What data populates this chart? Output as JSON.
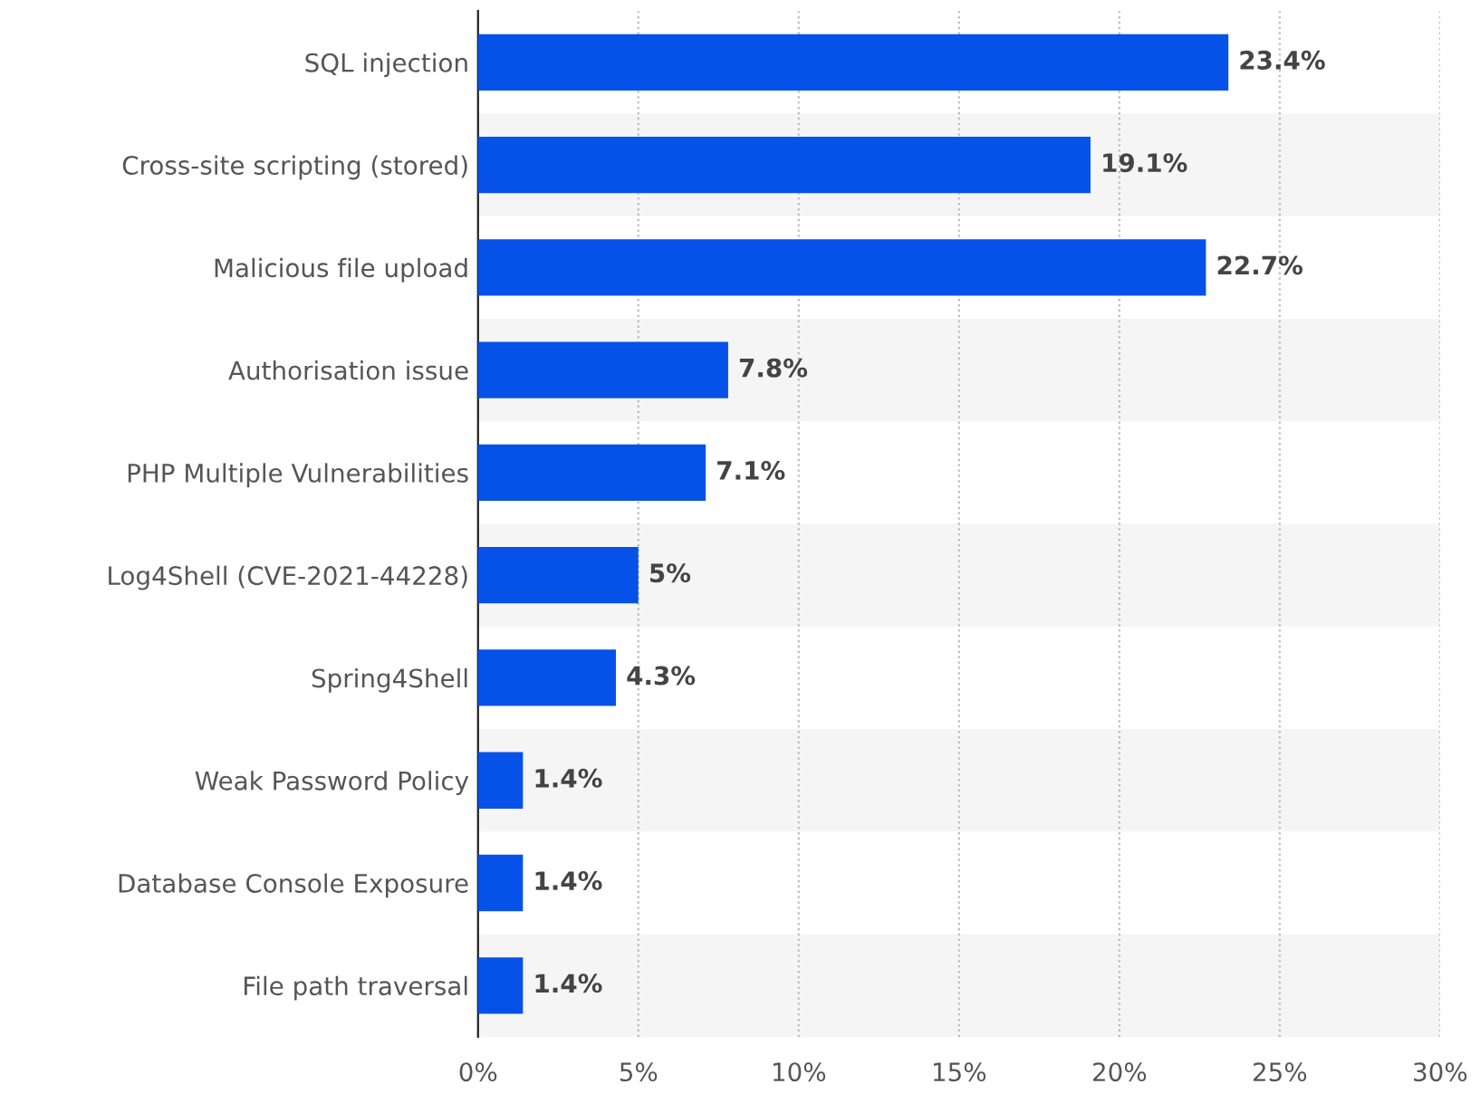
{
  "chart_data": {
    "type": "bar",
    "orientation": "horizontal",
    "categories": [
      "SQL injection",
      "Cross-site scripting (stored)",
      "Malicious file upload",
      "Authorisation issue",
      "PHP Multiple Vulnerabilities",
      "Log4Shell (CVE-2021-44228)",
      "Spring4Shell",
      "Weak Password Policy",
      "Database Console Exposure",
      "File path traversal"
    ],
    "values": [
      23.4,
      19.1,
      22.7,
      7.8,
      7.1,
      5,
      4.3,
      1.4,
      1.4,
      1.4
    ],
    "value_labels": [
      "23.4%",
      "19.1%",
      "22.7%",
      "7.8%",
      "7.1%",
      "5%",
      "4.3%",
      "1.4%",
      "1.4%",
      "1.4%"
    ],
    "color": "#0652e8",
    "xlim": [
      0,
      30
    ],
    "xticks": [
      {
        "value": 0,
        "label": "0%"
      },
      {
        "value": 5,
        "label": "5%"
      },
      {
        "value": 10,
        "label": "10%"
      },
      {
        "value": 15,
        "label": "15%"
      },
      {
        "value": 20,
        "label": "20%"
      },
      {
        "value": 25,
        "label": "25%"
      },
      {
        "value": 30,
        "label": "30%"
      }
    ],
    "grid": "x"
  }
}
